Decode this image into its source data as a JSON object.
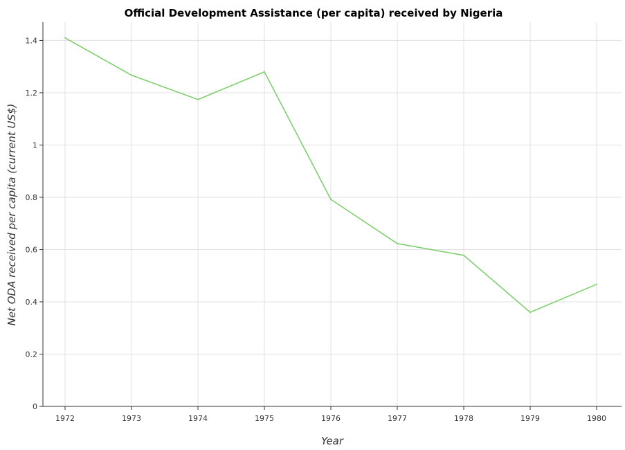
{
  "chart_data": {
    "type": "line",
    "title": "Official Development Assistance (per capita) received by Nigeria",
    "xlabel": "Year",
    "ylabel": "Net ODA received per capita (current US$)",
    "categories": [
      "1972",
      "1973",
      "1974",
      "1975",
      "1976",
      "1977",
      "1978",
      "1979",
      "1980"
    ],
    "series": [
      {
        "values": [
          1.41,
          1.267,
          1.174,
          1.28,
          0.792,
          0.623,
          0.578,
          0.36,
          0.467
        ]
      }
    ],
    "y_ticks": [
      "0",
      "0.2",
      "0.4",
      "0.6",
      "0.8",
      "1",
      "1.2",
      "1.4"
    ],
    "ylim": [
      0,
      1.47
    ],
    "grid": true,
    "line_color": "#7fcf6f"
  }
}
